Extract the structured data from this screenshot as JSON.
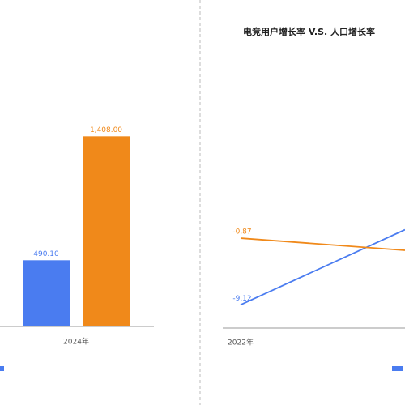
{
  "chart_data": [
    {
      "type": "bar",
      "categories": [
        "2024年"
      ],
      "series": [
        {
          "color": "#4a7cf0",
          "values": [
            490.1
          ],
          "value_labels": [
            "490.10"
          ]
        },
        {
          "color": "#f0891a",
          "values": [
            1408
          ],
          "value_labels": [
            "1,408.00"
          ]
        }
      ],
      "ylim": [
        0,
        1500
      ]
    },
    {
      "type": "line",
      "title": "电竞用户增长率 V.S. 人口增长率",
      "categories": [
        "2022年",
        null
      ],
      "series": [
        {
          "color": "#4a7cf0",
          "values": [
            -9.12,
            0.18
          ],
          "value_labels": [
            "-9.12",
            null
          ]
        },
        {
          "color": "#f0891a",
          "values": [
            -0.87,
            -2.37
          ],
          "value_labels": [
            "-0.87",
            null
          ]
        }
      ],
      "ylim": [
        -12,
        20
      ]
    }
  ]
}
